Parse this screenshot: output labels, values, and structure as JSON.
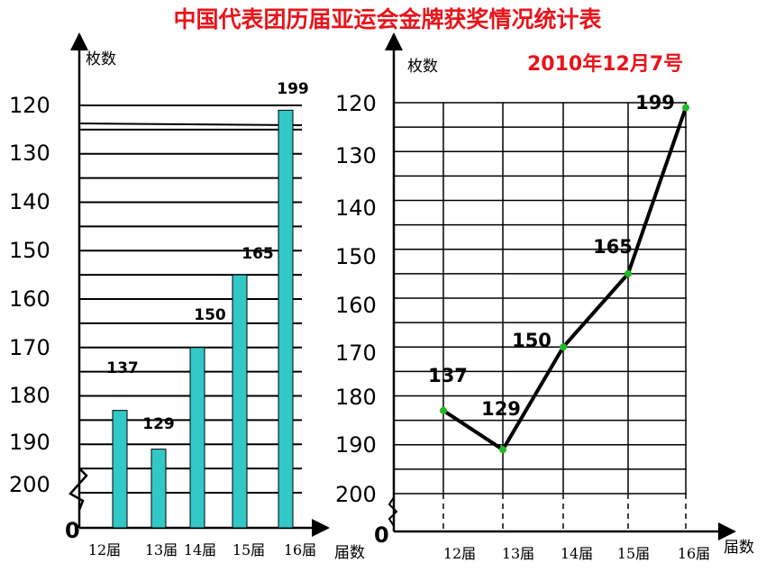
{
  "title": "中国代表团历届亚运会金牌获奖情况统计表",
  "date": "2010年12月7号",
  "chart_data": [
    {
      "type": "bar",
      "categories": [
        "12届",
        "13届",
        "14届",
        "15届",
        "16届"
      ],
      "values": [
        137,
        129,
        150,
        165,
        199
      ],
      "ylabel": "枚数",
      "xlabel": "届数",
      "yticks": [
        120,
        130,
        140,
        150,
        160,
        170,
        180,
        190,
        200
      ],
      "origin_label": "0",
      "ylim": [
        120,
        200
      ],
      "axis_break": true,
      "grid": true,
      "bar_color": "#33c8c8"
    },
    {
      "type": "line",
      "categories": [
        "12届",
        "13届",
        "14届",
        "15届",
        "16届"
      ],
      "values": [
        137,
        129,
        150,
        165,
        199
      ],
      "ylabel": "枚数",
      "xlabel": "届数",
      "yticks": [
        120,
        130,
        140,
        150,
        160,
        170,
        180,
        190,
        200
      ],
      "origin_label": "0",
      "ylim": [
        120,
        200
      ],
      "axis_break": true,
      "grid": true,
      "line_color": "#000000",
      "marker_color": "#22bb22"
    }
  ]
}
